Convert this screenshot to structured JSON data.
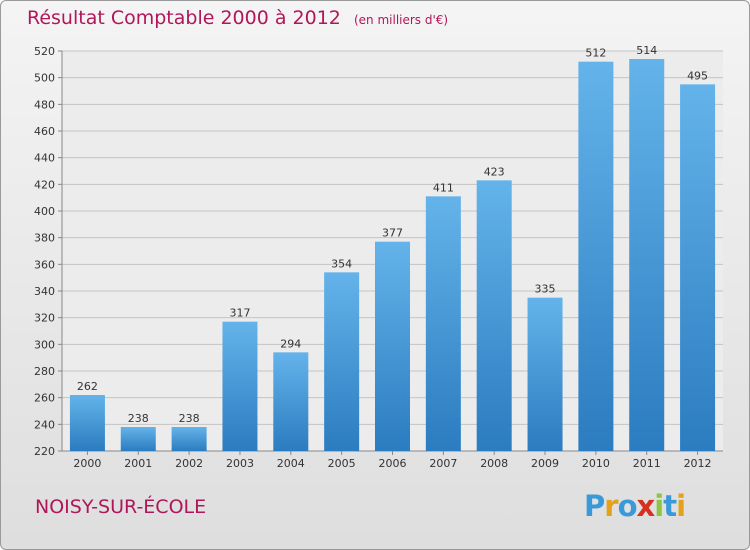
{
  "title": {
    "main": "Résultat Comptable 2000 à 2012",
    "unit": "(en milliers d'€)"
  },
  "commune": "NOISY-SUR-ÉCOLE",
  "logo": {
    "letters": [
      "P",
      "r",
      "o",
      "x",
      "i",
      "t",
      "i"
    ],
    "colors": [
      "#3a9ad9",
      "#e3a21a",
      "#3a9ad9",
      "#d4311f",
      "#8cc63f",
      "#3a9ad9",
      "#e3a21a"
    ]
  },
  "colors": {
    "bar_top": "#64b3ea",
    "bar_bottom": "#2b7cc0",
    "text": "#b0175a"
  },
  "chart_data": {
    "type": "bar",
    "categories": [
      "2000",
      "2001",
      "2002",
      "2003",
      "2004",
      "2005",
      "2006",
      "2007",
      "2008",
      "2009",
      "2010",
      "2011",
      "2012"
    ],
    "values": [
      262,
      238,
      238,
      317,
      294,
      354,
      377,
      411,
      423,
      335,
      512,
      514,
      495
    ],
    "ylim": [
      220,
      520
    ],
    "yticks": [
      220,
      240,
      260,
      280,
      300,
      320,
      340,
      360,
      380,
      400,
      420,
      440,
      460,
      480,
      500,
      520
    ],
    "grid": true,
    "show_value_labels": true
  }
}
